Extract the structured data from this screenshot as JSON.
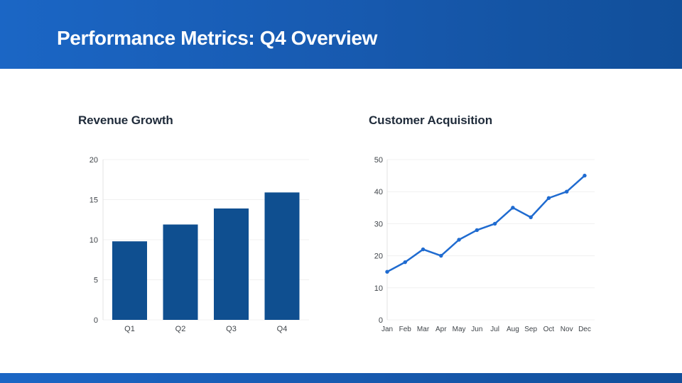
{
  "slide": {
    "title": "Performance Metrics: Q4 Overview"
  },
  "theme": {
    "header_gradient_start": "#1b66c5",
    "header_gradient_end": "#114f9a",
    "bar_color": "#0f4f90",
    "line_color": "#1f6bd0",
    "section_title_color": "#1f2b3a",
    "axis_label_color": "#3f4449",
    "gridline_color": "#f0f0f0",
    "axis_line_color": "#e3e3e3"
  },
  "chart_data": [
    {
      "type": "bar",
      "title": "Revenue Growth",
      "categories": [
        "Q1",
        "Q2",
        "Q3",
        "Q4"
      ],
      "values": [
        9.8,
        11.9,
        13.9,
        15.9
      ],
      "xlabel": "",
      "ylabel": "",
      "ylim": [
        0,
        20
      ],
      "yticks": [
        0,
        5,
        10,
        15,
        20
      ],
      "grid": true,
      "legend": false
    },
    {
      "type": "line",
      "title": "Customer Acquisition",
      "categories": [
        "Jan",
        "Feb",
        "Mar",
        "Apr",
        "May",
        "Jun",
        "Jul",
        "Aug",
        "Sep",
        "Oct",
        "Nov",
        "Dec"
      ],
      "values": [
        15,
        18,
        22,
        20,
        25,
        28,
        30,
        35,
        32,
        38,
        40,
        45
      ],
      "xlabel": "",
      "ylabel": "",
      "ylim": [
        0,
        50
      ],
      "yticks": [
        0,
        10,
        20,
        30,
        40,
        50
      ],
      "grid": true,
      "legend": false,
      "markers": true
    }
  ]
}
